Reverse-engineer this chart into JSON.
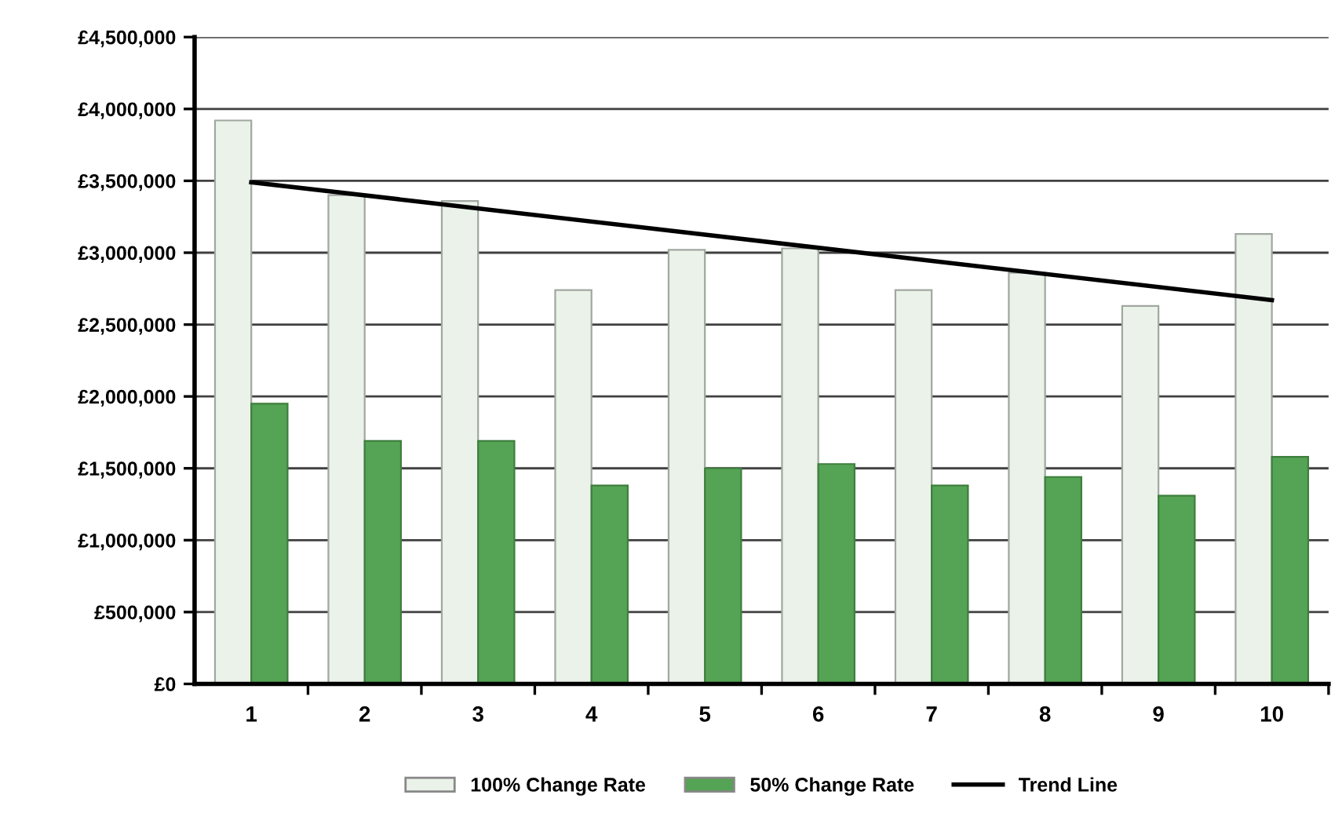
{
  "chart_data": {
    "type": "bar",
    "categories": [
      "1",
      "2",
      "3",
      "4",
      "5",
      "6",
      "7",
      "8",
      "9",
      "10"
    ],
    "series": [
      {
        "name": "100% Change Rate",
        "color": "#eaf2ea",
        "values": [
          3920000,
          3400000,
          3360000,
          2740000,
          3020000,
          3030000,
          2740000,
          2860000,
          2630000,
          3130000
        ]
      },
      {
        "name": "50% Change Rate",
        "color": "#55a354",
        "values": [
          1950000,
          1690000,
          1690000,
          1380000,
          1500000,
          1530000,
          1380000,
          1440000,
          1310000,
          1580000
        ]
      },
      {
        "name": "Trend Line",
        "type": "line",
        "color": "#000000",
        "values": [
          3490000,
          null,
          null,
          null,
          null,
          null,
          null,
          null,
          null,
          2670000
        ]
      }
    ],
    "ylim": [
      0,
      4500000
    ],
    "yticks": [
      {
        "value": 0,
        "label": "£0"
      },
      {
        "value": 500000,
        "label": "£500,000"
      },
      {
        "value": 1000000,
        "label": "£1,000,000"
      },
      {
        "value": 1500000,
        "label": "£1,500,000"
      },
      {
        "value": 2000000,
        "label": "£2,000,000"
      },
      {
        "value": 2500000,
        "label": "£2,500,000"
      },
      {
        "value": 3000000,
        "label": "£3,000,000"
      },
      {
        "value": 3500000,
        "label": "£3,500,000"
      },
      {
        "value": 4000000,
        "label": "£4,000,000"
      },
      {
        "value": 4500000,
        "label": "£4,500,000"
      }
    ],
    "grid": "y",
    "legend": "bottom",
    "marker": "none",
    "line_style": "solid"
  }
}
